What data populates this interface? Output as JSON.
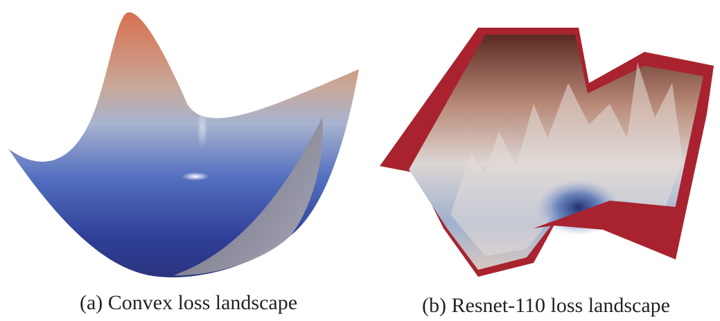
{
  "figure": {
    "panels": [
      {
        "caption": "(a) Convex loss landscape"
      },
      {
        "caption": "(b) Resnet-110 loss landscape"
      }
    ]
  }
}
